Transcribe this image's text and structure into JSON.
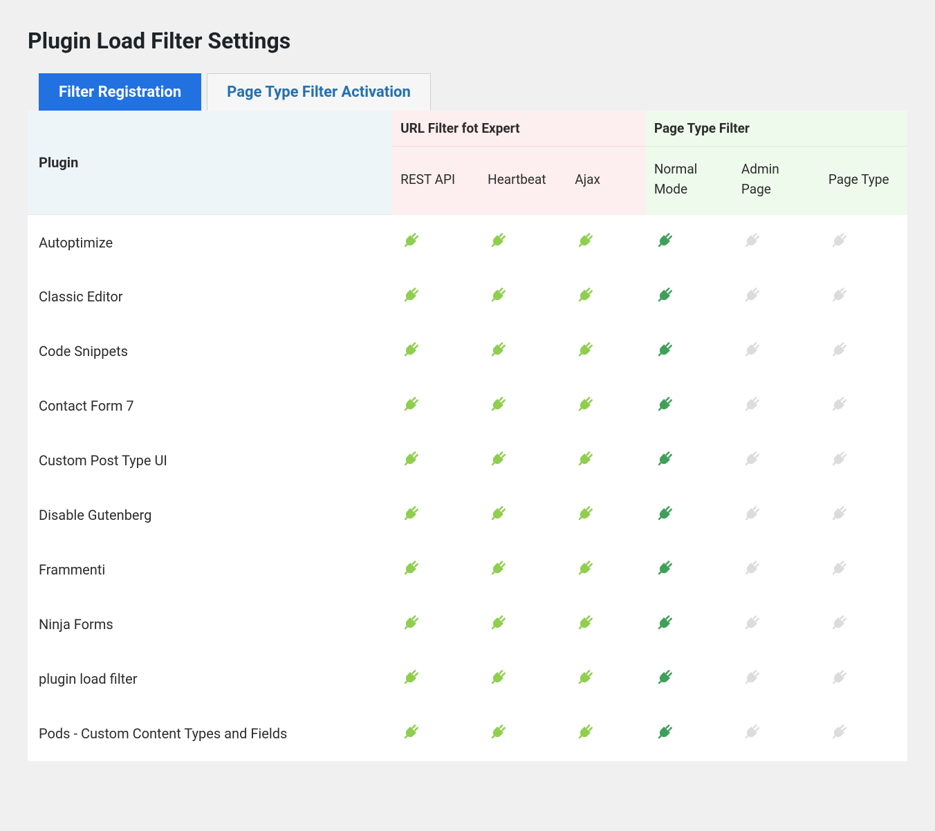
{
  "page": {
    "title": "Plugin Load Filter Settings"
  },
  "tabs": {
    "filter_registration": "Filter Registration",
    "page_type_activation": "Page Type Filter Activation",
    "active_index": 0
  },
  "headers": {
    "plugin": "Plugin",
    "url_filter_group": "URL Filter fot Expert",
    "page_type_group": "Page Type Filter",
    "cols": {
      "rest_api": "REST API",
      "heartbeat": "Heartbeat",
      "ajax": "Ajax",
      "normal_mode": "Normal Mode",
      "admin_page": "Admin Page",
      "page_type": "Page Type"
    }
  },
  "colors": {
    "light_green": "#8fce4e",
    "dark_green": "#3fa05a",
    "gray": "#dcdcdc",
    "bg_url": "#fdeeef",
    "bg_page": "#eefaec",
    "bg_plugin_header": "#eef5f9",
    "tab_active_bg": "#2271e0",
    "tab_inactive_text": "#2271b1",
    "page_bg": "#f0f0f1"
  },
  "icon_states": {
    "light": {
      "fill": "#8fce4e"
    },
    "dark": {
      "fill": "#3fa05a"
    },
    "off": {
      "fill": "#dcdcdc"
    }
  },
  "plugins": [
    {
      "name": "Autoptimize",
      "states": [
        "light",
        "light",
        "light",
        "dark",
        "off",
        "off"
      ]
    },
    {
      "name": "Classic Editor",
      "states": [
        "light",
        "light",
        "light",
        "dark",
        "off",
        "off"
      ]
    },
    {
      "name": "Code Snippets",
      "states": [
        "light",
        "light",
        "light",
        "dark",
        "off",
        "off"
      ]
    },
    {
      "name": "Contact Form 7",
      "states": [
        "light",
        "light",
        "light",
        "dark",
        "off",
        "off"
      ]
    },
    {
      "name": "Custom Post Type UI",
      "states": [
        "light",
        "light",
        "light",
        "dark",
        "off",
        "off"
      ]
    },
    {
      "name": "Disable Gutenberg",
      "states": [
        "light",
        "light",
        "light",
        "dark",
        "off",
        "off"
      ]
    },
    {
      "name": "Frammenti",
      "states": [
        "light",
        "light",
        "light",
        "dark",
        "off",
        "off"
      ]
    },
    {
      "name": "Ninja Forms",
      "states": [
        "light",
        "light",
        "light",
        "dark",
        "off",
        "off"
      ]
    },
    {
      "name": "plugin load filter",
      "states": [
        "light",
        "light",
        "light",
        "dark",
        "off",
        "off"
      ]
    },
    {
      "name": "Pods - Custom Content Types and Fields",
      "states": [
        "light",
        "light",
        "light",
        "dark",
        "off",
        "off"
      ]
    }
  ]
}
